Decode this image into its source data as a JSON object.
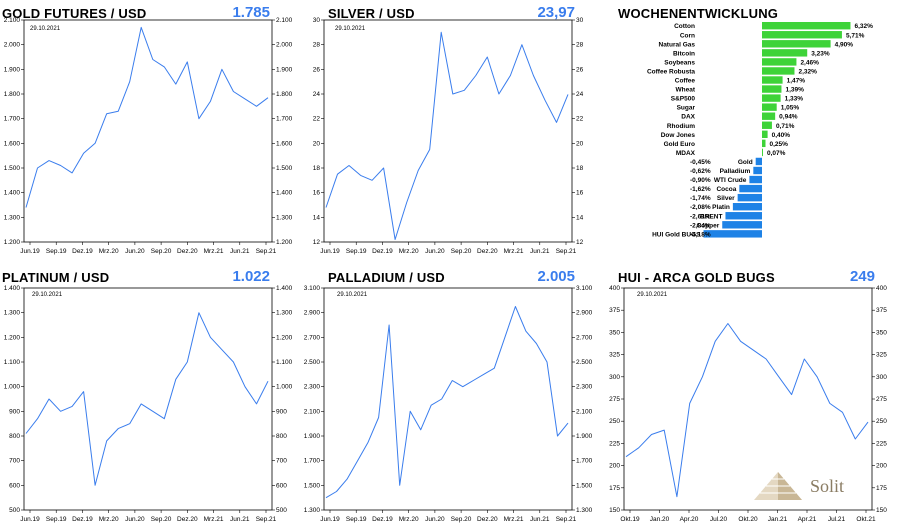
{
  "panels": [
    {
      "id": "gold",
      "title": "GOLD FUTURES / USD",
      "value": "1.785",
      "date": "29.10.2021"
    },
    {
      "id": "silver",
      "title": "SILVER / USD",
      "value": "23,97",
      "date": "29.10.2021"
    },
    {
      "id": "platinum",
      "title": "PLATINUM / USD",
      "value": "1.022",
      "date": "29.10.2021"
    },
    {
      "id": "palladium",
      "title": "PALLADIUM / USD",
      "value": "2.005",
      "date": "29.10.2021"
    },
    {
      "id": "hui",
      "title": "HUI - ARCA GOLD BUGS",
      "value": "249",
      "date": "29.10.2021"
    }
  ],
  "weekly": {
    "title": "WOCHENENTWICKLUNG"
  },
  "logo": {
    "text": "Solit"
  },
  "colors": {
    "line": "#3a7ded",
    "positive": "#3ed339",
    "negative": "#1e82e6",
    "logo": "#8a7c63"
  },
  "chart_data": [
    {
      "type": "line",
      "title": "GOLD FUTURES / USD",
      "xticks": [
        "Jun.19",
        "Sep.19",
        "Dez.19",
        "Mrz.20",
        "Jun.20",
        "Sep.20",
        "Dez.20",
        "Mrz.21",
        "Jun.21",
        "Sep.21"
      ],
      "yticks": [
        "1.200",
        "1.300",
        "1.400",
        "1.500",
        "1.600",
        "1.700",
        "1.800",
        "1.900",
        "2.000",
        "2.100"
      ],
      "ylim": [
        1200,
        2100
      ],
      "x": [
        "Jun.19",
        "Aug.19",
        "Sep.19",
        "Okt.19",
        "Dez.19",
        "Jan.20",
        "Mrz.20",
        "Apr.20",
        "Jun.20",
        "Jul.20",
        "Aug.20",
        "Sep.20",
        "Okt.20",
        "Dez.20",
        "Jan.21",
        "Mrz.21",
        "Apr.21",
        "Jun.21",
        "Jul.21",
        "Aug.21",
        "Sep.21",
        "Okt.21"
      ],
      "values": [
        1340,
        1500,
        1530,
        1510,
        1480,
        1560,
        1600,
        1720,
        1730,
        1850,
        2070,
        1940,
        1910,
        1840,
        1930,
        1700,
        1770,
        1900,
        1810,
        1780,
        1750,
        1785
      ]
    },
    {
      "type": "line",
      "title": "SILVER / USD",
      "xticks": [
        "Jun.19",
        "Sep.19",
        "Dez.19",
        "Mrz.20",
        "Jun.20",
        "Sep.20",
        "Dez.20",
        "Mrz.21",
        "Jun.21",
        "Sep.21"
      ],
      "yticks": [
        "12",
        "14",
        "16",
        "18",
        "20",
        "22",
        "24",
        "26",
        "28",
        "30"
      ],
      "ylim": [
        12,
        30
      ],
      "x": [
        "Jun.19",
        "Aug.19",
        "Sep.19",
        "Okt.19",
        "Dez.19",
        "Jan.20",
        "Mrz.20",
        "Apr.20",
        "Jun.20",
        "Jul.20",
        "Aug.20",
        "Sep.20",
        "Okt.20",
        "Dez.20",
        "Jan.21",
        "Mrz.21",
        "Apr.21",
        "Jun.21",
        "Jul.21",
        "Aug.21",
        "Sep.21",
        "Okt.21"
      ],
      "values": [
        14.8,
        17.5,
        18.2,
        17.4,
        17.0,
        18.0,
        12.2,
        15.2,
        17.8,
        19.5,
        29.0,
        24.0,
        24.3,
        25.5,
        27.0,
        24.0,
        25.5,
        28.0,
        25.5,
        23.5,
        21.7,
        23.97
      ]
    },
    {
      "type": "bar",
      "title": "WOCHENENTWICKLUNG",
      "categories": [
        "Cotton",
        "Corn",
        "Natural Gas",
        "Bitcoin",
        "Soybeans",
        "Coffee Robusta",
        "Coffee",
        "Wheat",
        "S&P500",
        "Sugar",
        "DAX",
        "Rhodium",
        "Dow Jones",
        "Gold Euro",
        "MDAX",
        "Gold",
        "Palladium",
        "WTI Crude",
        "Cocoa",
        "Silver",
        "Platin",
        "BRENT",
        "Copper",
        "HUI Gold BUGS"
      ],
      "values": [
        6.32,
        5.71,
        4.9,
        3.23,
        2.46,
        2.32,
        1.47,
        1.39,
        1.33,
        1.05,
        0.94,
        0.71,
        0.4,
        0.25,
        0.07,
        -0.45,
        -0.62,
        -0.9,
        -1.62,
        -1.74,
        -2.08,
        -2.61,
        -2.84,
        -4.18
      ],
      "labels": [
        "6,32%",
        "5,71%",
        "4,90%",
        "3,23%",
        "2,46%",
        "2,32%",
        "1,47%",
        "1,39%",
        "1,33%",
        "1,05%",
        "0,94%",
        "0,71%",
        "0,40%",
        "0,25%",
        "0,07%",
        "-0,45%",
        "-0,62%",
        "-0,90%",
        "-1,62%",
        "-1,74%",
        "-2,08%",
        "-2,61%",
        "-2,84%",
        "-4,18%"
      ]
    },
    {
      "type": "line",
      "title": "PLATINUM / USD",
      "xticks": [
        "Jun.19",
        "Sep.19",
        "Dez.19",
        "Mrz.20",
        "Jun.20",
        "Sep.20",
        "Dez.20",
        "Mrz.21",
        "Jun.21",
        "Sep.21"
      ],
      "yticks": [
        "500",
        "600",
        "700",
        "800",
        "900",
        "1.000",
        "1.100",
        "1.200",
        "1.300",
        "1.400"
      ],
      "ylim": [
        500,
        1400
      ],
      "x": [
        "Jun.19",
        "Aug.19",
        "Sep.19",
        "Okt.19",
        "Dez.19",
        "Jan.20",
        "Mrz.20",
        "Apr.20",
        "Jun.20",
        "Jul.20",
        "Aug.20",
        "Sep.20",
        "Okt.20",
        "Dez.20",
        "Jan.21",
        "Mrz.21",
        "Apr.21",
        "Jun.21",
        "Jul.21",
        "Aug.21",
        "Sep.21",
        "Okt.21"
      ],
      "values": [
        810,
        870,
        950,
        900,
        920,
        980,
        600,
        780,
        830,
        850,
        930,
        900,
        870,
        1030,
        1100,
        1300,
        1200,
        1150,
        1100,
        1000,
        930,
        1022
      ]
    },
    {
      "type": "line",
      "title": "PALLADIUM / USD",
      "xticks": [
        "Jun.19",
        "Sep.19",
        "Dez.19",
        "Mrz.20",
        "Jun.20",
        "Sep.20",
        "Dez.20",
        "Mrz.21",
        "Jun.21",
        "Sep.21"
      ],
      "yticks": [
        "1.300",
        "1.500",
        "1.700",
        "1.900",
        "2.100",
        "2.300",
        "2.500",
        "2.700",
        "2.900",
        "3.100"
      ],
      "ylim": [
        1300,
        3100
      ],
      "x": [
        "Jun.19",
        "Aug.19",
        "Sep.19",
        "Okt.19",
        "Dez.19",
        "Jan.20",
        "Feb.20",
        "Mrz.20",
        "Apr.20",
        "Jun.20",
        "Jul.20",
        "Aug.20",
        "Sep.20",
        "Okt.20",
        "Dez.20",
        "Jan.21",
        "Mrz.21",
        "Apr.21",
        "Mai.21",
        "Jun.21",
        "Jul.21",
        "Aug.21",
        "Sep.21",
        "Okt.21"
      ],
      "values": [
        1400,
        1450,
        1550,
        1700,
        1850,
        2050,
        2800,
        1500,
        2100,
        1950,
        2150,
        2200,
        2350,
        2300,
        2350,
        2400,
        2450,
        2700,
        2950,
        2750,
        2650,
        2500,
        1900,
        2005
      ]
    },
    {
      "type": "line",
      "title": "HUI - ARCA GOLD BUGS",
      "xticks": [
        "Okt.19",
        "Jan.20",
        "Apr.20",
        "Jul.20",
        "Okt.20",
        "Jan.21",
        "Apr.21",
        "Jul.21",
        "Okt.21"
      ],
      "yticks": [
        "150",
        "175",
        "200",
        "225",
        "250",
        "275",
        "300",
        "325",
        "350",
        "375",
        "400"
      ],
      "ylim": [
        150,
        400
      ],
      "x": [
        "Okt.19",
        "Dez.19",
        "Jan.20",
        "Feb.20",
        "Mrz.20",
        "Apr.20",
        "Mai.20",
        "Jul.20",
        "Aug.20",
        "Sep.20",
        "Okt.20",
        "Dez.20",
        "Jan.21",
        "Mrz.21",
        "Mai.21",
        "Jun.21",
        "Jul.21",
        "Aug.21",
        "Sep.21",
        "Okt.21"
      ],
      "values": [
        210,
        220,
        235,
        240,
        165,
        270,
        300,
        340,
        360,
        340,
        330,
        320,
        300,
        280,
        320,
        300,
        270,
        260,
        230,
        249
      ]
    }
  ]
}
